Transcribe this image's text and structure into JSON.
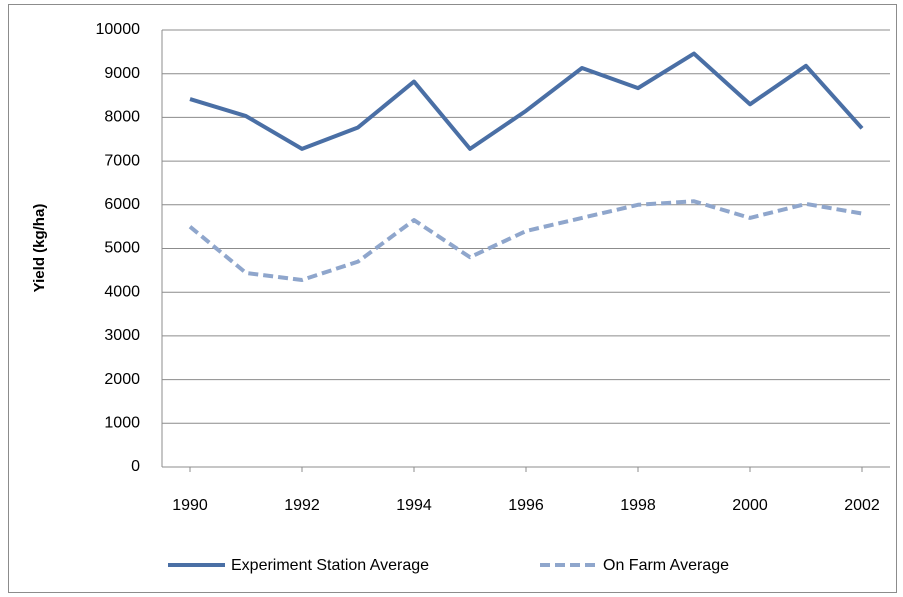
{
  "chart_data": {
    "type": "line",
    "y_label": "Yield (kg/ha)",
    "x": [
      1990,
      1991,
      1992,
      1993,
      1994,
      1995,
      1996,
      1997,
      1998,
      1999,
      2000,
      2001,
      2002
    ],
    "series": [
      {
        "name": "Experiment Station  Average",
        "color": "#4a6fa5",
        "dash": "solid",
        "values": [
          8420,
          8030,
          7280,
          7770,
          8820,
          7280,
          8150,
          9130,
          8670,
          9460,
          8300,
          9180,
          7750
        ]
      },
      {
        "name": "On Farm Average",
        "color": "#8fa6cc",
        "dash": "dashed",
        "values": [
          5500,
          4440,
          4280,
          4700,
          5650,
          4800,
          5400,
          5700,
          6000,
          6080,
          5700,
          6020,
          5800
        ]
      }
    ],
    "xlim": [
      1989.5,
      2002.5
    ],
    "xticks": [
      1990,
      1992,
      1994,
      1996,
      1998,
      2000,
      2002
    ],
    "ylim": [
      0,
      10000
    ],
    "yticks": [
      0,
      1000,
      2000,
      3000,
      4000,
      5000,
      6000,
      7000,
      8000,
      9000,
      10000
    ],
    "grid": true,
    "legend": "bottom"
  }
}
